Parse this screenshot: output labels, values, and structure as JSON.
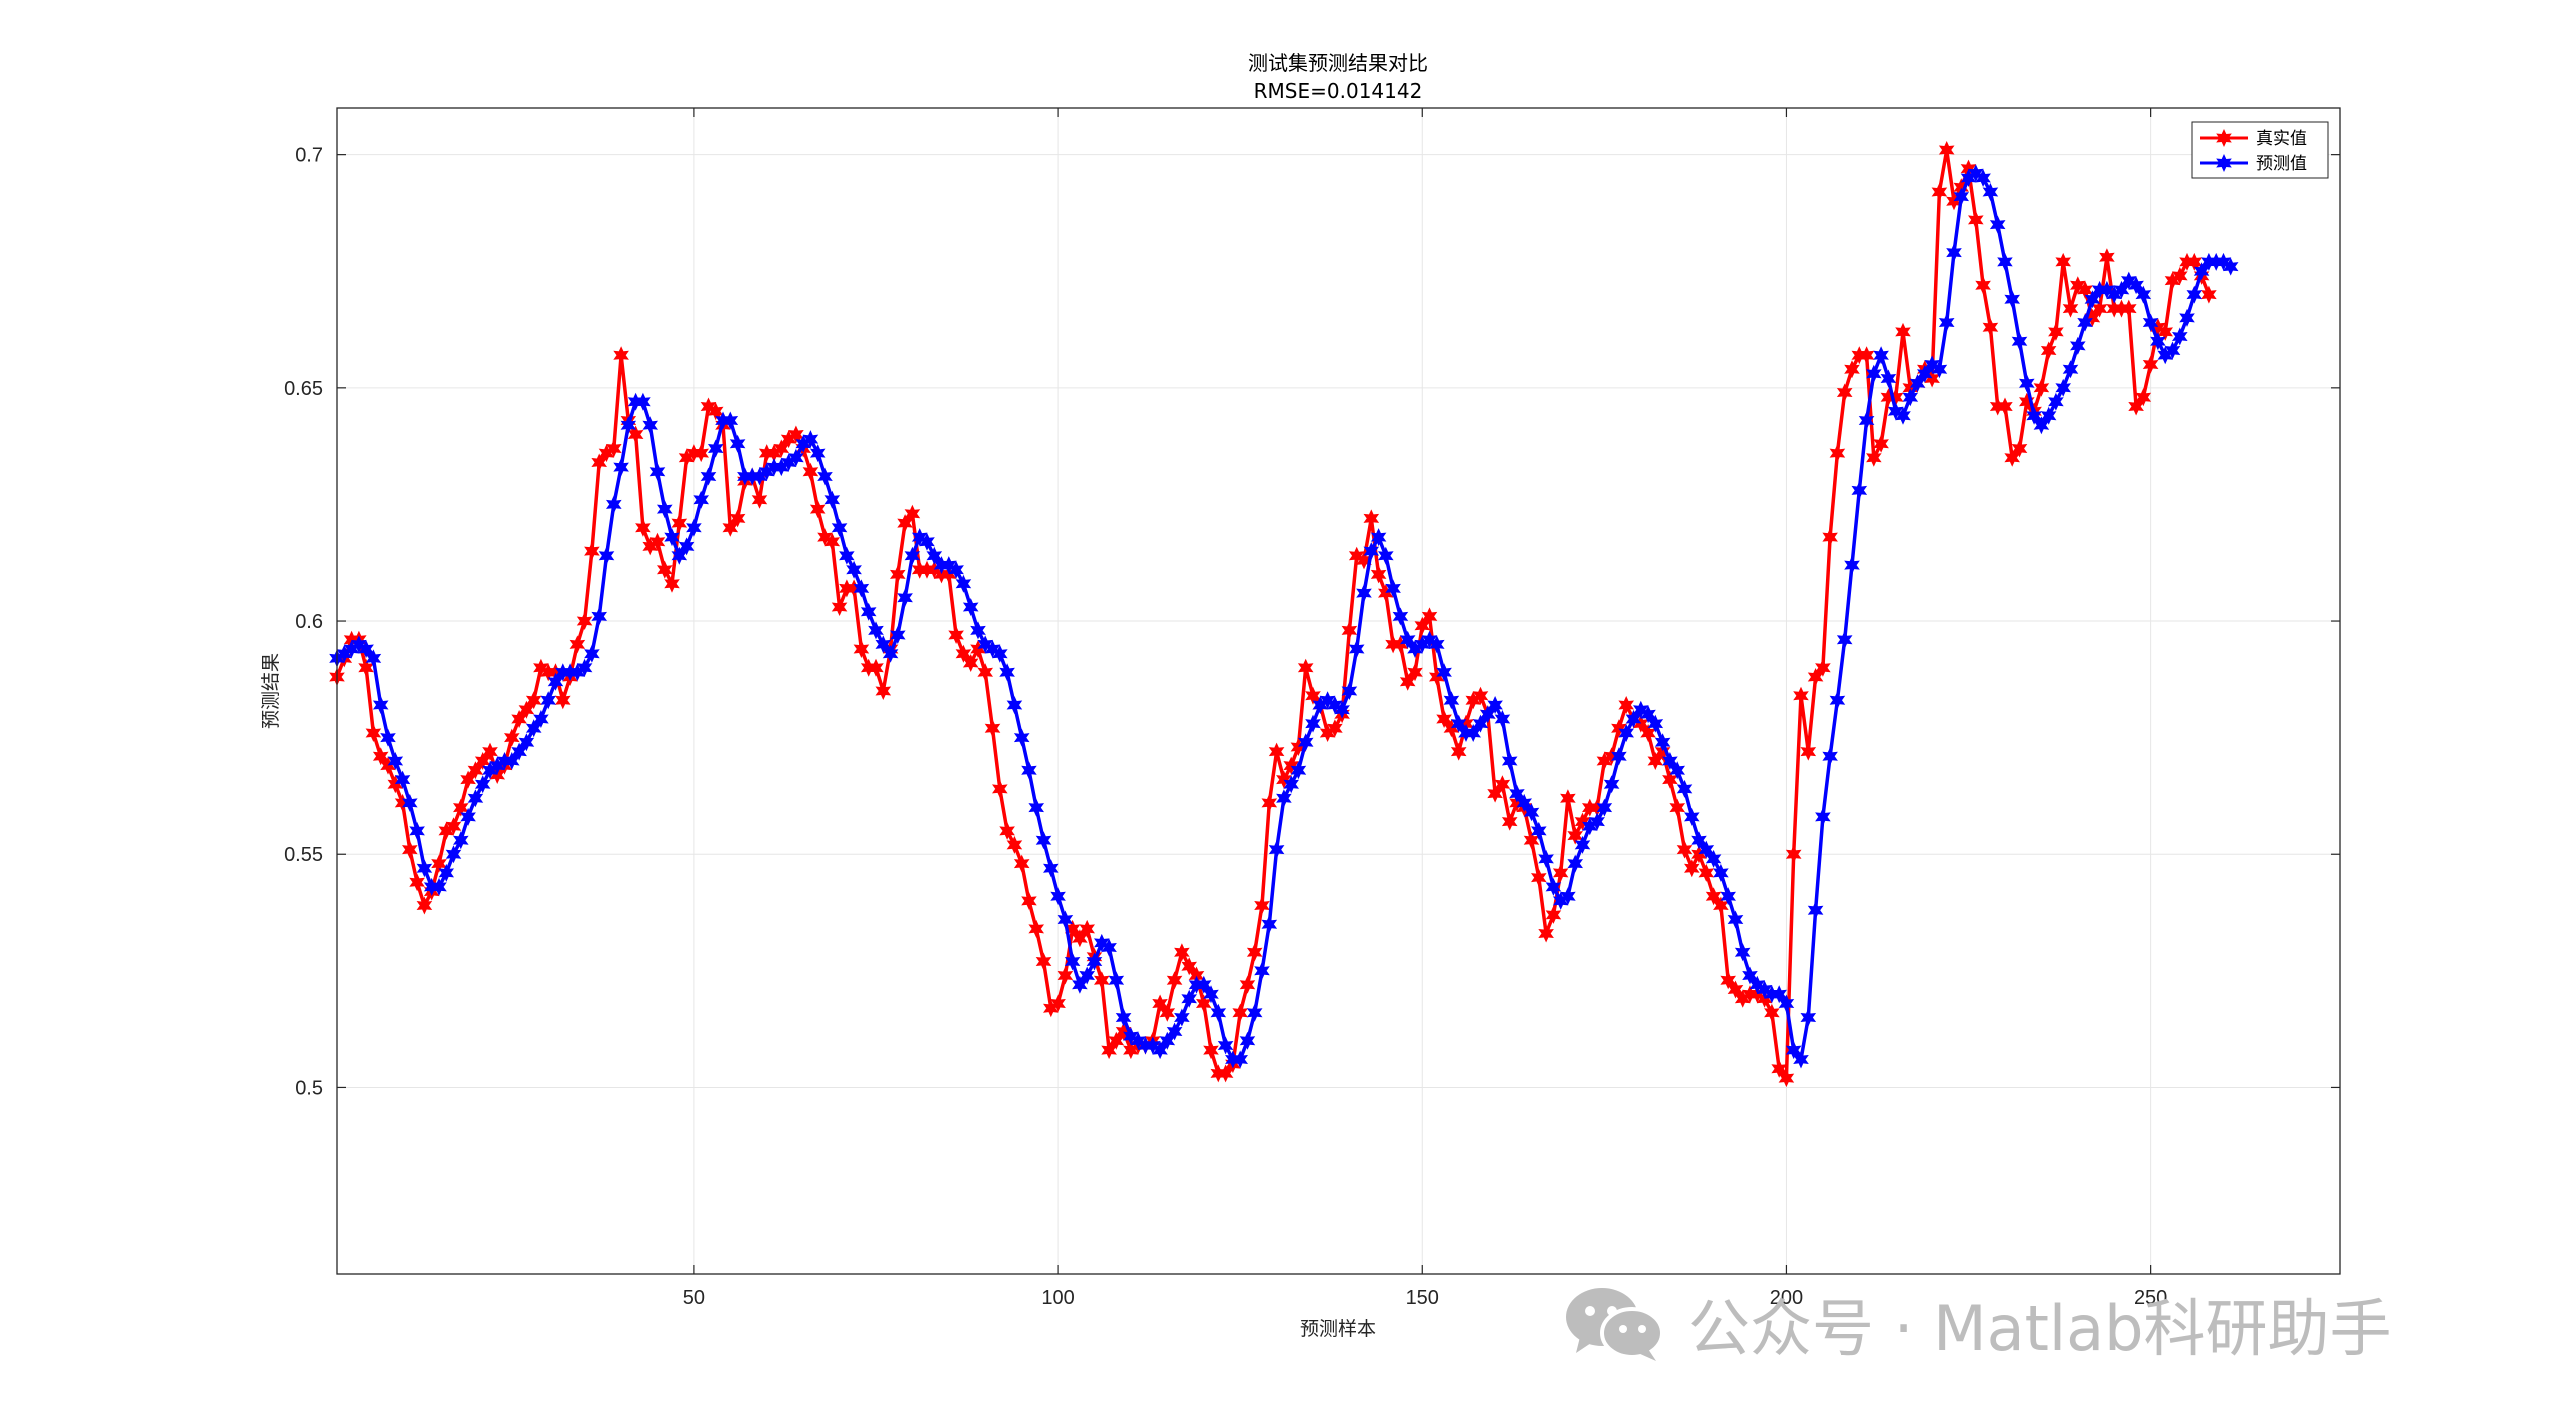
{
  "watermark": {
    "text": "公众号 · Matlab科研助手",
    "icon": "wechat-icon",
    "color": "#bdbdbd"
  },
  "chart_data": {
    "type": "line",
    "title": "测试集预测结果对比",
    "subtitle": "RMSE=0.014142",
    "xlabel": "预测样本",
    "ylabel": "预测结果",
    "xlim": [
      1,
      276
    ],
    "ylim": [
      0.46,
      0.71
    ],
    "xticks": [
      50,
      100,
      150,
      200,
      250
    ],
    "yticks": [
      0.5,
      0.55,
      0.6,
      0.65,
      0.7
    ],
    "ytick_labels": [
      "0.5",
      "0.55",
      "0.6",
      "0.65",
      "0.7"
    ],
    "grid": true,
    "legend_position": "top-right",
    "series": [
      {
        "name": "真实值",
        "color": "#ff0000",
        "marker": "hexagram",
        "values": [
          0.588,
          0.592,
          0.596,
          0.596,
          0.59,
          0.576,
          0.571,
          0.569,
          0.565,
          0.561,
          0.551,
          0.544,
          0.539,
          0.542,
          0.548,
          0.555,
          0.556,
          0.56,
          0.566,
          0.568,
          0.57,
          0.572,
          0.567,
          0.569,
          0.575,
          0.579,
          0.581,
          0.583,
          0.59,
          0.589,
          0.589,
          0.583,
          0.588,
          0.595,
          0.6,
          0.615,
          0.634,
          0.636,
          0.637,
          0.657,
          0.643,
          0.64,
          0.62,
          0.616,
          0.617,
          0.611,
          0.608,
          0.621,
          0.635,
          0.636,
          0.636,
          0.646,
          0.645,
          0.642,
          0.62,
          0.622,
          0.63,
          0.631,
          0.626,
          0.636,
          0.636,
          0.637,
          0.639,
          0.64,
          0.637,
          0.632,
          0.624,
          0.618,
          0.617,
          0.603,
          0.607,
          0.607,
          0.594,
          0.59,
          0.59,
          0.585,
          0.594,
          0.61,
          0.621,
          0.623,
          0.611,
          0.611,
          0.611,
          0.61,
          0.61,
          0.597,
          0.593,
          0.591,
          0.594,
          0.589,
          0.577,
          0.564,
          0.555,
          0.552,
          0.548,
          0.54,
          0.534,
          0.527,
          0.517,
          0.518,
          0.524,
          0.534,
          0.532,
          0.534,
          0.528,
          0.523,
          0.508,
          0.51,
          0.512,
          0.508,
          0.509,
          0.509,
          0.51,
          0.518,
          0.516,
          0.523,
          0.529,
          0.526,
          0.524,
          0.518,
          0.508,
          0.503,
          0.503,
          0.505,
          0.516,
          0.522,
          0.529,
          0.539,
          0.561,
          0.572,
          0.566,
          0.569,
          0.573,
          0.59,
          0.584,
          0.582,
          0.576,
          0.577,
          0.58,
          0.598,
          0.614,
          0.613,
          0.622,
          0.61,
          0.606,
          0.595,
          0.595,
          0.587,
          0.589,
          0.599,
          0.601,
          0.588,
          0.579,
          0.577,
          0.572,
          0.578,
          0.583,
          0.584,
          0.58,
          0.563,
          0.565,
          0.557,
          0.561,
          0.56,
          0.553,
          0.545,
          0.533,
          0.537,
          0.546,
          0.562,
          0.554,
          0.557,
          0.56,
          0.56,
          0.57,
          0.571,
          0.577,
          0.582,
          0.579,
          0.578,
          0.576,
          0.57,
          0.572,
          0.566,
          0.56,
          0.551,
          0.547,
          0.55,
          0.546,
          0.541,
          0.539,
          0.523,
          0.521,
          0.519,
          0.52,
          0.52,
          0.519,
          0.516,
          0.504,
          0.502,
          0.55,
          0.584,
          0.572,
          0.588,
          0.59,
          0.618,
          0.636,
          0.649,
          0.654,
          0.657,
          0.657,
          0.635,
          0.638,
          0.648,
          0.648,
          0.662,
          0.65,
          0.651,
          0.654,
          0.652,
          0.692,
          0.701,
          0.69,
          0.693,
          0.697,
          0.686,
          0.672,
          0.663,
          0.646,
          0.646,
          0.635,
          0.637,
          0.647,
          0.645,
          0.65,
          0.658,
          0.662,
          0.677,
          0.667,
          0.672,
          0.671,
          0.665,
          0.667,
          0.678,
          0.667,
          0.667,
          0.667,
          0.646,
          0.648,
          0.655,
          0.663,
          0.662,
          0.673,
          0.674,
          0.677,
          0.677,
          0.674,
          0.67
        ]
      },
      {
        "name": "预测值",
        "color": "#0000ff",
        "marker": "hexagram",
        "values": [
          0.592,
          0.593,
          0.594,
          0.595,
          0.594,
          0.592,
          0.582,
          0.575,
          0.57,
          0.566,
          0.561,
          0.555,
          0.547,
          0.543,
          0.543,
          0.546,
          0.55,
          0.553,
          0.558,
          0.562,
          0.565,
          0.568,
          0.569,
          0.57,
          0.57,
          0.572,
          0.574,
          0.577,
          0.579,
          0.583,
          0.587,
          0.589,
          0.589,
          0.589,
          0.59,
          0.593,
          0.601,
          0.614,
          0.625,
          0.633,
          0.642,
          0.647,
          0.647,
          0.642,
          0.632,
          0.624,
          0.618,
          0.614,
          0.616,
          0.62,
          0.626,
          0.631,
          0.637,
          0.643,
          0.643,
          0.638,
          0.631,
          0.631,
          0.631,
          0.632,
          0.633,
          0.633,
          0.634,
          0.635,
          0.638,
          0.639,
          0.636,
          0.631,
          0.626,
          0.62,
          0.614,
          0.611,
          0.607,
          0.602,
          0.598,
          0.595,
          0.593,
          0.597,
          0.605,
          0.614,
          0.618,
          0.617,
          0.614,
          0.612,
          0.612,
          0.611,
          0.608,
          0.603,
          0.598,
          0.595,
          0.594,
          0.593,
          0.589,
          0.582,
          0.575,
          0.568,
          0.56,
          0.553,
          0.547,
          0.541,
          0.536,
          0.527,
          0.522,
          0.524,
          0.527,
          0.531,
          0.53,
          0.523,
          0.515,
          0.511,
          0.51,
          0.509,
          0.509,
          0.508,
          0.51,
          0.512,
          0.515,
          0.519,
          0.522,
          0.522,
          0.52,
          0.516,
          0.509,
          0.506,
          0.506,
          0.51,
          0.516,
          0.525,
          0.535,
          0.551,
          0.562,
          0.565,
          0.568,
          0.574,
          0.578,
          0.582,
          0.583,
          0.582,
          0.581,
          0.585,
          0.594,
          0.606,
          0.615,
          0.618,
          0.614,
          0.607,
          0.601,
          0.596,
          0.594,
          0.595,
          0.596,
          0.595,
          0.589,
          0.583,
          0.578,
          0.576,
          0.576,
          0.578,
          0.58,
          0.582,
          0.579,
          0.57,
          0.563,
          0.561,
          0.559,
          0.555,
          0.549,
          0.543,
          0.54,
          0.541,
          0.548,
          0.552,
          0.556,
          0.557,
          0.56,
          0.565,
          0.571,
          0.576,
          0.579,
          0.581,
          0.58,
          0.578,
          0.574,
          0.57,
          0.568,
          0.564,
          0.558,
          0.553,
          0.551,
          0.549,
          0.546,
          0.541,
          0.536,
          0.529,
          0.524,
          0.522,
          0.521,
          0.52,
          0.52,
          0.518,
          0.508,
          0.506,
          0.515,
          0.538,
          0.558,
          0.571,
          0.583,
          0.596,
          0.612,
          0.628,
          0.643,
          0.653,
          0.657,
          0.652,
          0.645,
          0.644,
          0.648,
          0.651,
          0.653,
          0.655,
          0.654,
          0.664,
          0.679,
          0.691,
          0.695,
          0.696,
          0.695,
          0.692,
          0.685,
          0.677,
          0.669,
          0.66,
          0.651,
          0.644,
          0.642,
          0.644,
          0.647,
          0.65,
          0.654,
          0.659,
          0.664,
          0.669,
          0.671,
          0.671,
          0.67,
          0.671,
          0.673,
          0.672,
          0.67,
          0.664,
          0.66,
          0.657,
          0.658,
          0.661,
          0.665,
          0.67,
          0.675,
          0.677,
          0.677,
          0.677,
          0.676
        ]
      }
    ]
  }
}
